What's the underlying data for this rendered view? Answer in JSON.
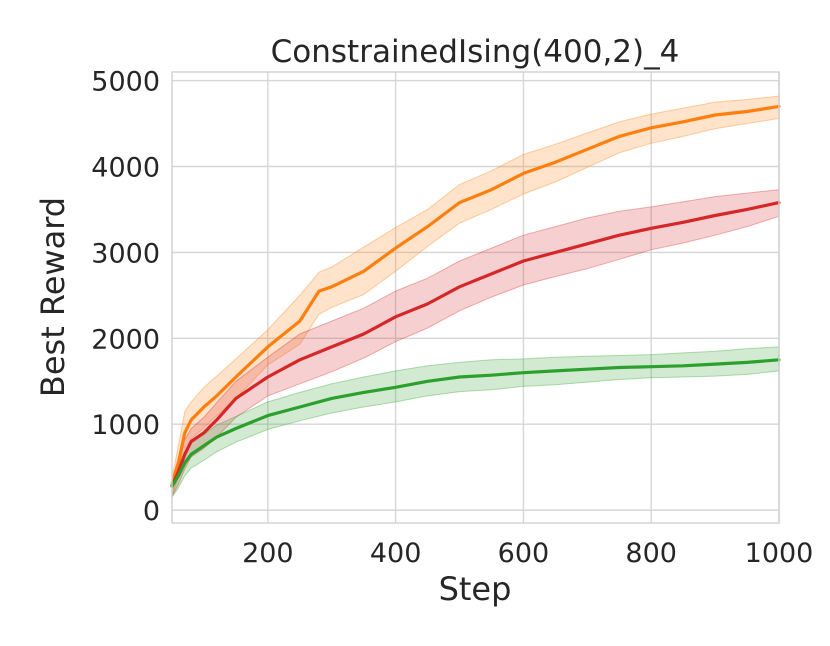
{
  "chart_data": {
    "type": "line",
    "title": "ConstrainedIsing(400,2)_4",
    "xlabel": "Step",
    "ylabel": "Best Reward",
    "xlim": [
      50,
      1000
    ],
    "ylim": [
      -150,
      5100
    ],
    "xticks": [
      200,
      400,
      600,
      800,
      1000
    ],
    "yticks": [
      0,
      1000,
      2000,
      3000,
      4000,
      5000
    ],
    "grid": true,
    "legend": "none",
    "series": [
      {
        "color": "#ff7f0e",
        "x": [
          50,
          60,
          70,
          80,
          100,
          120,
          150,
          200,
          250,
          280,
          300,
          350,
          400,
          450,
          500,
          550,
          600,
          650,
          700,
          750,
          800,
          850,
          900,
          950,
          1000
        ],
        "y": [
          300,
          550,
          900,
          1050,
          1200,
          1330,
          1550,
          1900,
          2200,
          2550,
          2600,
          2780,
          3050,
          3300,
          3580,
          3730,
          3920,
          4050,
          4200,
          4350,
          4450,
          4520,
          4600,
          4640,
          4700
        ],
        "upper": [
          380,
          750,
          1150,
          1260,
          1430,
          1560,
          1760,
          2100,
          2500,
          2770,
          2830,
          3060,
          3290,
          3500,
          3790,
          3950,
          4140,
          4260,
          4390,
          4520,
          4610,
          4680,
          4750,
          4780,
          4820
        ],
        "lower": [
          150,
          400,
          680,
          830,
          960,
          1100,
          1300,
          1690,
          1930,
          2280,
          2360,
          2510,
          2780,
          3070,
          3340,
          3500,
          3680,
          3820,
          3990,
          4160,
          4270,
          4350,
          4440,
          4500,
          4560
        ]
      },
      {
        "color": "#d62728",
        "x": [
          50,
          60,
          70,
          80,
          100,
          120,
          150,
          200,
          250,
          300,
          350,
          400,
          450,
          500,
          550,
          600,
          650,
          700,
          750,
          800,
          850,
          900,
          950,
          1000
        ],
        "y": [
          280,
          450,
          650,
          800,
          900,
          1050,
          1300,
          1550,
          1750,
          1900,
          2050,
          2250,
          2400,
          2600,
          2750,
          2900,
          3000,
          3100,
          3200,
          3280,
          3350,
          3430,
          3500,
          3580
        ],
        "upper": [
          360,
          600,
          820,
          950,
          1080,
          1250,
          1500,
          1780,
          2050,
          2200,
          2350,
          2550,
          2700,
          2900,
          3050,
          3200,
          3300,
          3400,
          3480,
          3530,
          3590,
          3650,
          3690,
          3730
        ],
        "lower": [
          160,
          300,
          480,
          620,
          720,
          850,
          1080,
          1330,
          1470,
          1610,
          1770,
          1960,
          2120,
          2320,
          2480,
          2620,
          2720,
          2810,
          2920,
          3030,
          3110,
          3200,
          3300,
          3420
        ]
      },
      {
        "color": "#2ca02c",
        "x": [
          50,
          60,
          70,
          80,
          100,
          120,
          150,
          200,
          250,
          300,
          350,
          400,
          450,
          500,
          550,
          600,
          650,
          700,
          750,
          800,
          850,
          900,
          950,
          1000
        ],
        "y": [
          280,
          400,
          550,
          650,
          750,
          850,
          950,
          1100,
          1200,
          1300,
          1370,
          1430,
          1500,
          1550,
          1570,
          1600,
          1620,
          1640,
          1660,
          1670,
          1680,
          1700,
          1720,
          1750
        ],
        "upper": [
          350,
          520,
          680,
          780,
          880,
          990,
          1090,
          1260,
          1370,
          1470,
          1550,
          1620,
          1680,
          1720,
          1750,
          1760,
          1780,
          1790,
          1800,
          1810,
          1830,
          1850,
          1880,
          1900
        ],
        "lower": [
          150,
          260,
          400,
          490,
          580,
          680,
          790,
          940,
          1040,
          1130,
          1200,
          1260,
          1330,
          1380,
          1400,
          1440,
          1460,
          1490,
          1520,
          1540,
          1550,
          1560,
          1580,
          1620
        ]
      }
    ]
  }
}
